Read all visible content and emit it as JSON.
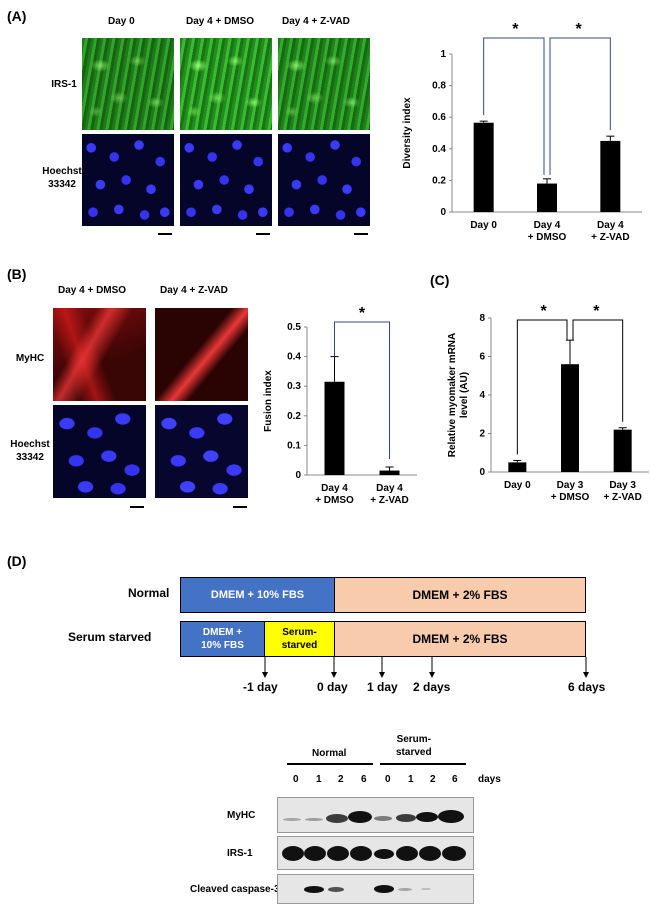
{
  "panel_labels": {
    "a": "(A)",
    "b": "(B)",
    "c": "(C)",
    "d": "(D)"
  },
  "panelA": {
    "columns": [
      "Day 0",
      "Day 4 + DMSO",
      "Day 4 + Z-VAD"
    ],
    "rows": [
      "IRS-1",
      "Hoechst\n33342"
    ]
  },
  "panelB": {
    "columns": [
      "Day 4 + DMSO",
      "Day 4 + Z-VAD"
    ],
    "rows": [
      "MyHC",
      "Hoechst\n33342"
    ]
  },
  "panelD": {
    "rows": [
      "Normal",
      "Serum starved"
    ],
    "boxes": {
      "normal_a": "DMEM  + 10% FBS",
      "normal_b": "DMEM + 2% FBS",
      "starved_a": "DMEM  +\n10% FBS",
      "starved_b": "Serum-\nstarved",
      "starved_c": "DMEM + 2% FBS"
    },
    "timepoints": [
      "-1 day",
      "0 day",
      "1 day",
      "2 days",
      "6 days"
    ],
    "colors": {
      "blue": "#4472c4",
      "peach": "#f8cbad",
      "yellow": "#ffff00"
    },
    "blot": {
      "group_labels": [
        "Normal",
        "Serum-\nstarved"
      ],
      "lanes": [
        "0",
        "1",
        "2",
        "6",
        "0",
        "1",
        "2",
        "6"
      ],
      "lanes_unit": "days",
      "proteins": [
        "MyHC",
        "IRS-1",
        "Cleaved caspase-3"
      ]
    }
  },
  "chart_data": [
    {
      "id": "A",
      "type": "bar",
      "categories": [
        "Day 0",
        "Day 4\n+ DMSO",
        "Day 4\n+ Z-VAD"
      ],
      "values": [
        0.565,
        0.18,
        0.45
      ],
      "errors": [
        0.01,
        0.03,
        0.03
      ],
      "ylabel": "Diversity index",
      "ylim": [
        0,
        1
      ],
      "yticks": [
        "0",
        "0.2",
        "0.4",
        "0.6",
        "0.8",
        "1"
      ],
      "significance": [
        "*",
        "*"
      ],
      "bar_color": "#000000",
      "bracket_color": "#2f4a8a"
    },
    {
      "id": "B",
      "type": "bar",
      "categories": [
        "Day 4\n+ DMSO",
        "Day 4\n+ Z-VAD"
      ],
      "values": [
        0.315,
        0.015
      ],
      "errors": [
        0.085,
        0.012
      ],
      "ylabel": "Fusion index",
      "ylim": [
        0,
        0.5
      ],
      "yticks": [
        "0",
        "0.1",
        "0.2",
        "0.3",
        "0.4",
        "0.5"
      ],
      "significance": [
        "*"
      ],
      "bar_color": "#000000",
      "bracket_color": "#2f4a8a"
    },
    {
      "id": "C",
      "type": "bar",
      "categories": [
        "Day 0",
        "Day 3\n+ DMSO",
        "Day 3\n+ Z-VAD"
      ],
      "values": [
        0.5,
        5.6,
        2.2
      ],
      "errors": [
        0.1,
        1.25,
        0.1
      ],
      "ylabel": "Relative myomaker mRNA\nlevel (AU)",
      "ylim": [
        0,
        8
      ],
      "yticks": [
        "0",
        "2",
        "4",
        "6",
        "8"
      ],
      "significance": [
        "*",
        "*"
      ],
      "bar_color": "#000000",
      "bracket_color": "#000000"
    }
  ]
}
